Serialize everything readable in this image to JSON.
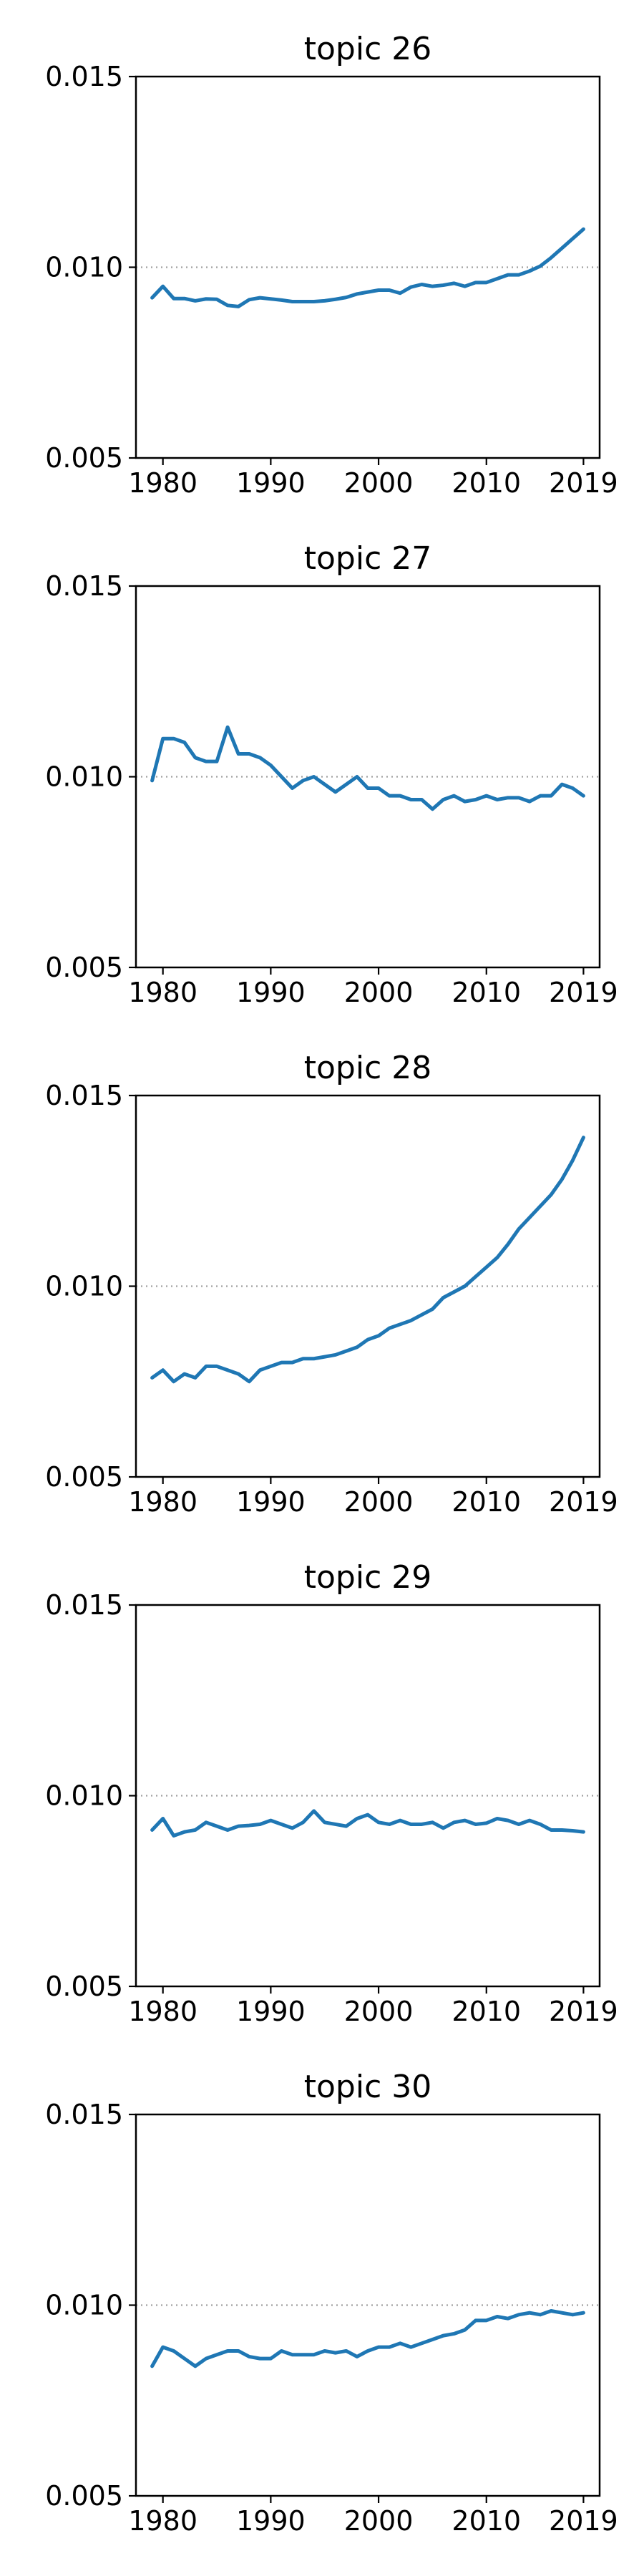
{
  "chart_data": [
    {
      "type": "line",
      "title": "topic 26",
      "xlabel": "",
      "ylabel": "",
      "xlim": [
        1977.5,
        2020.5
      ],
      "ylim": [
        0.005,
        0.015
      ],
      "yticks": [
        "0.005",
        "0.010",
        "0.015"
      ],
      "xticks": [
        "1980",
        "1990",
        "2000",
        "2010",
        "2019"
      ],
      "xtick_values": [
        1980,
        1990,
        2000,
        2010,
        2019
      ],
      "reference_line": 0.01,
      "grid": false,
      "line_color": "#1f77b4",
      "x": [
        1979,
        1980,
        1981,
        1982,
        1983,
        1984,
        1985,
        1986,
        1987,
        1988,
        1989,
        1990,
        1991,
        1992,
        1993,
        1994,
        1995,
        1996,
        1997,
        1998,
        1999,
        2000,
        2001,
        2002,
        2003,
        2004,
        2005,
        2006,
        2007,
        2008,
        2009,
        2010,
        2011,
        2012,
        2013,
        2014,
        2015,
        2016,
        2017,
        2018,
        2019
      ],
      "values": [
        0.0092,
        0.0095,
        0.00918,
        0.00918,
        0.00912,
        0.00917,
        0.00916,
        0.009,
        0.00897,
        0.00915,
        0.0092,
        0.00917,
        0.00914,
        0.0091,
        0.0091,
        0.0091,
        0.00912,
        0.00916,
        0.00921,
        0.0093,
        0.00935,
        0.0094,
        0.0094,
        0.00932,
        0.00948,
        0.00955,
        0.0095,
        0.00953,
        0.00958,
        0.0095,
        0.0096,
        0.0096,
        0.0097,
        0.0098,
        0.0098,
        0.0099,
        0.01003,
        0.01025,
        0.0105,
        0.01075,
        0.011
      ]
    },
    {
      "type": "line",
      "title": "topic 27",
      "xlabel": "",
      "ylabel": "",
      "xlim": [
        1977.5,
        2020.5
      ],
      "ylim": [
        0.005,
        0.015
      ],
      "yticks": [
        "0.005",
        "0.010",
        "0.015"
      ],
      "xticks": [
        "1980",
        "1990",
        "2000",
        "2010",
        "2019"
      ],
      "xtick_values": [
        1980,
        1990,
        2000,
        2010,
        2019
      ],
      "reference_line": 0.01,
      "grid": false,
      "line_color": "#1f77b4",
      "x": [
        1979,
        1980,
        1981,
        1982,
        1983,
        1984,
        1985,
        1986,
        1987,
        1988,
        1989,
        1990,
        1991,
        1992,
        1993,
        1994,
        1995,
        1996,
        1997,
        1998,
        1999,
        2000,
        2001,
        2002,
        2003,
        2004,
        2005,
        2006,
        2007,
        2008,
        2009,
        2010,
        2011,
        2012,
        2013,
        2014,
        2015,
        2016,
        2017,
        2018,
        2019
      ],
      "values": [
        0.0099,
        0.011,
        0.011,
        0.0109,
        0.0105,
        0.0104,
        0.0104,
        0.0113,
        0.0106,
        0.0106,
        0.0105,
        0.0103,
        0.01,
        0.0097,
        0.0099,
        0.01,
        0.0098,
        0.0096,
        0.0098,
        0.01,
        0.0097,
        0.0097,
        0.0095,
        0.0095,
        0.0094,
        0.0094,
        0.00915,
        0.0094,
        0.0095,
        0.00935,
        0.0094,
        0.0095,
        0.0094,
        0.00945,
        0.00945,
        0.00935,
        0.0095,
        0.0095,
        0.0098,
        0.0097,
        0.0095
      ]
    },
    {
      "type": "line",
      "title": "topic 28",
      "xlabel": "",
      "ylabel": "",
      "xlim": [
        1977.5,
        2020.5
      ],
      "ylim": [
        0.005,
        0.015
      ],
      "yticks": [
        "0.005",
        "0.010",
        "0.015"
      ],
      "xticks": [
        "1980",
        "1990",
        "2000",
        "2010",
        "2019"
      ],
      "xtick_values": [
        1980,
        1990,
        2000,
        2010,
        2019
      ],
      "reference_line": 0.01,
      "grid": false,
      "line_color": "#1f77b4",
      "x": [
        1979,
        1980,
        1981,
        1982,
        1983,
        1984,
        1985,
        1986,
        1987,
        1988,
        1989,
        1990,
        1991,
        1992,
        1993,
        1994,
        1995,
        1996,
        1997,
        1998,
        1999,
        2000,
        2001,
        2002,
        2003,
        2004,
        2005,
        2006,
        2007,
        2008,
        2009,
        2010,
        2011,
        2012,
        2013,
        2014,
        2015,
        2016,
        2017,
        2018,
        2019
      ],
      "values": [
        0.0076,
        0.0078,
        0.0075,
        0.0077,
        0.0076,
        0.0079,
        0.0079,
        0.0078,
        0.0077,
        0.0075,
        0.0078,
        0.0079,
        0.008,
        0.008,
        0.0081,
        0.0081,
        0.00815,
        0.0082,
        0.0083,
        0.0084,
        0.0086,
        0.0087,
        0.0089,
        0.009,
        0.0091,
        0.00925,
        0.0094,
        0.0097,
        0.00985,
        0.01,
        0.01025,
        0.0105,
        0.01075,
        0.0111,
        0.0115,
        0.0118,
        0.0121,
        0.0124,
        0.0128,
        0.0133,
        0.0139
      ]
    },
    {
      "type": "line",
      "title": "topic 29",
      "xlabel": "",
      "ylabel": "",
      "xlim": [
        1977.5,
        2020.5
      ],
      "ylim": [
        0.005,
        0.015
      ],
      "yticks": [
        "0.005",
        "0.010",
        "0.015"
      ],
      "xticks": [
        "1980",
        "1990",
        "2000",
        "2010",
        "2019"
      ],
      "xtick_values": [
        1980,
        1990,
        2000,
        2010,
        2019
      ],
      "reference_line": 0.01,
      "grid": false,
      "line_color": "#1f77b4",
      "x": [
        1979,
        1980,
        1981,
        1982,
        1983,
        1984,
        1985,
        1986,
        1987,
        1988,
        1989,
        1990,
        1991,
        1992,
        1993,
        1994,
        1995,
        1996,
        1997,
        1998,
        1999,
        2000,
        2001,
        2002,
        2003,
        2004,
        2005,
        2006,
        2007,
        2008,
        2009,
        2010,
        2011,
        2012,
        2013,
        2014,
        2015,
        2016,
        2017,
        2018,
        2019
      ],
      "values": [
        0.0091,
        0.0094,
        0.00895,
        0.00905,
        0.0091,
        0.0093,
        0.0092,
        0.0091,
        0.0092,
        0.00922,
        0.00925,
        0.00935,
        0.00925,
        0.00915,
        0.0093,
        0.0096,
        0.0093,
        0.00925,
        0.0092,
        0.0094,
        0.0095,
        0.0093,
        0.00925,
        0.00935,
        0.00925,
        0.00925,
        0.0093,
        0.00915,
        0.0093,
        0.00935,
        0.00925,
        0.00928,
        0.0094,
        0.00935,
        0.00925,
        0.00935,
        0.00925,
        0.0091,
        0.0091,
        0.00908,
        0.00905
      ]
    },
    {
      "type": "line",
      "title": "topic 30",
      "xlabel": "",
      "ylabel": "",
      "xlim": [
        1977.5,
        2020.5
      ],
      "ylim": [
        0.005,
        0.015
      ],
      "yticks": [
        "0.005",
        "0.010",
        "0.015"
      ],
      "xticks": [
        "1980",
        "1990",
        "2000",
        "2010",
        "2019"
      ],
      "xtick_values": [
        1980,
        1990,
        2000,
        2010,
        2019
      ],
      "reference_line": 0.01,
      "grid": false,
      "line_color": "#1f77b4",
      "x": [
        1979,
        1980,
        1981,
        1982,
        1983,
        1984,
        1985,
        1986,
        1987,
        1988,
        1989,
        1990,
        1991,
        1992,
        1993,
        1994,
        1995,
        1996,
        1997,
        1998,
        1999,
        2000,
        2001,
        2002,
        2003,
        2004,
        2005,
        2006,
        2007,
        2008,
        2009,
        2010,
        2011,
        2012,
        2013,
        2014,
        2015,
        2016,
        2017,
        2018,
        2019
      ],
      "values": [
        0.0084,
        0.0089,
        0.0088,
        0.0086,
        0.0084,
        0.0086,
        0.0087,
        0.0088,
        0.0088,
        0.00865,
        0.0086,
        0.0086,
        0.0088,
        0.0087,
        0.0087,
        0.0087,
        0.0088,
        0.00875,
        0.0088,
        0.00865,
        0.0088,
        0.0089,
        0.0089,
        0.009,
        0.0089,
        0.009,
        0.0091,
        0.0092,
        0.00925,
        0.00935,
        0.0096,
        0.0096,
        0.0097,
        0.00965,
        0.00975,
        0.0098,
        0.00975,
        0.00985,
        0.0098,
        0.00975,
        0.0098
      ]
    }
  ]
}
